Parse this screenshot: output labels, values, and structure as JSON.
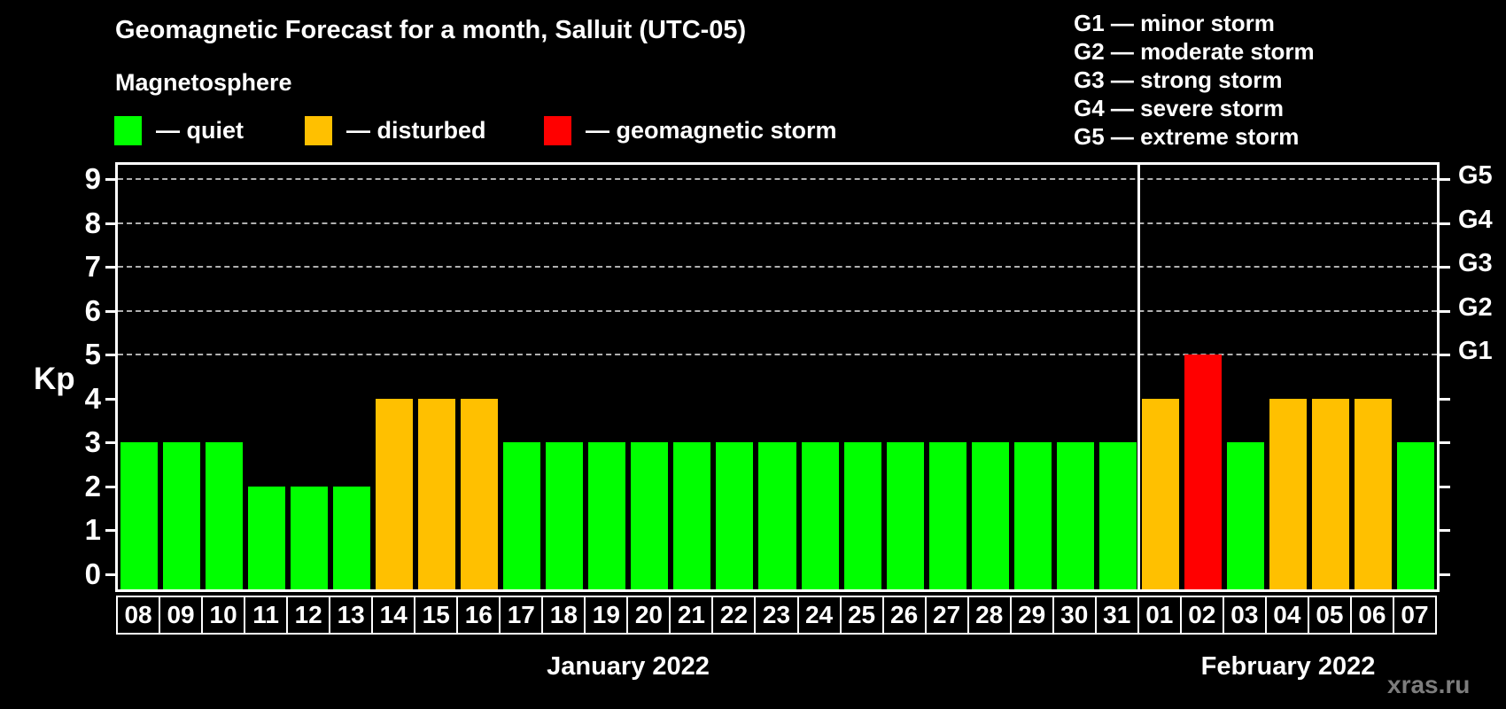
{
  "title": "Geomagnetic Forecast for a month, Salluit (UTC-05)",
  "subtitle": "Magnetosphere",
  "legend": [
    {
      "key": "quiet",
      "label": "— quiet",
      "color": "#00ff00"
    },
    {
      "key": "disturbed",
      "label": "— disturbed",
      "color": "#ffc000"
    },
    {
      "key": "storm",
      "label": "— geomagnetic storm",
      "color": "#ff0000"
    }
  ],
  "storm_scale": [
    {
      "level": "G1",
      "text": "G1 — minor storm"
    },
    {
      "level": "G2",
      "text": "G2 — moderate storm"
    },
    {
      "level": "G3",
      "text": "G3 — strong storm"
    },
    {
      "level": "G4",
      "text": "G4 — severe storm"
    },
    {
      "level": "G5",
      "text": "G5 — extreme storm"
    }
  ],
  "watermark": "xras.ru",
  "chart_data": {
    "type": "bar",
    "ylabel": "Kp",
    "ylim": [
      0,
      9.4
    ],
    "yticks": [
      0,
      1,
      2,
      3,
      4,
      5,
      6,
      7,
      8,
      9
    ],
    "gridlines_at": [
      5,
      6,
      7,
      8,
      9
    ],
    "grid": "dashed, horizontal, only at G-storm levels 5-9",
    "right_axis": [
      {
        "kp": 5,
        "label": "G1"
      },
      {
        "kp": 6,
        "label": "G2"
      },
      {
        "kp": 7,
        "label": "G3"
      },
      {
        "kp": 8,
        "label": "G4"
      },
      {
        "kp": 9,
        "label": "G5"
      }
    ],
    "status_colors": {
      "quiet": "#00ff00",
      "disturbed": "#ffc000",
      "storm": "#ff0000"
    },
    "months": [
      {
        "label": "January 2022",
        "days": [
          {
            "day": "08",
            "kp": 3,
            "status": "quiet"
          },
          {
            "day": "09",
            "kp": 3,
            "status": "quiet"
          },
          {
            "day": "10",
            "kp": 3,
            "status": "quiet"
          },
          {
            "day": "11",
            "kp": 2,
            "status": "quiet"
          },
          {
            "day": "12",
            "kp": 2,
            "status": "quiet"
          },
          {
            "day": "13",
            "kp": 2,
            "status": "quiet"
          },
          {
            "day": "14",
            "kp": 4,
            "status": "disturbed"
          },
          {
            "day": "15",
            "kp": 4,
            "status": "disturbed"
          },
          {
            "day": "16",
            "kp": 4,
            "status": "disturbed"
          },
          {
            "day": "17",
            "kp": 3,
            "status": "quiet"
          },
          {
            "day": "18",
            "kp": 3,
            "status": "quiet"
          },
          {
            "day": "19",
            "kp": 3,
            "status": "quiet"
          },
          {
            "day": "20",
            "kp": 3,
            "status": "quiet"
          },
          {
            "day": "21",
            "kp": 3,
            "status": "quiet"
          },
          {
            "day": "22",
            "kp": 3,
            "status": "quiet"
          },
          {
            "day": "23",
            "kp": 3,
            "status": "quiet"
          },
          {
            "day": "24",
            "kp": 3,
            "status": "quiet"
          },
          {
            "day": "25",
            "kp": 3,
            "status": "quiet"
          },
          {
            "day": "26",
            "kp": 3,
            "status": "quiet"
          },
          {
            "day": "27",
            "kp": 3,
            "status": "quiet"
          },
          {
            "day": "28",
            "kp": 3,
            "status": "quiet"
          },
          {
            "day": "29",
            "kp": 3,
            "status": "quiet"
          },
          {
            "day": "30",
            "kp": 3,
            "status": "quiet"
          },
          {
            "day": "31",
            "kp": 3,
            "status": "quiet"
          }
        ]
      },
      {
        "label": "February 2022",
        "days": [
          {
            "day": "01",
            "kp": 4,
            "status": "disturbed"
          },
          {
            "day": "02",
            "kp": 5,
            "status": "storm"
          },
          {
            "day": "03",
            "kp": 3,
            "status": "quiet"
          },
          {
            "day": "04",
            "kp": 4,
            "status": "disturbed"
          },
          {
            "day": "05",
            "kp": 4,
            "status": "disturbed"
          },
          {
            "day": "06",
            "kp": 4,
            "status": "disturbed"
          },
          {
            "day": "07",
            "kp": 3,
            "status": "quiet"
          }
        ]
      }
    ]
  }
}
